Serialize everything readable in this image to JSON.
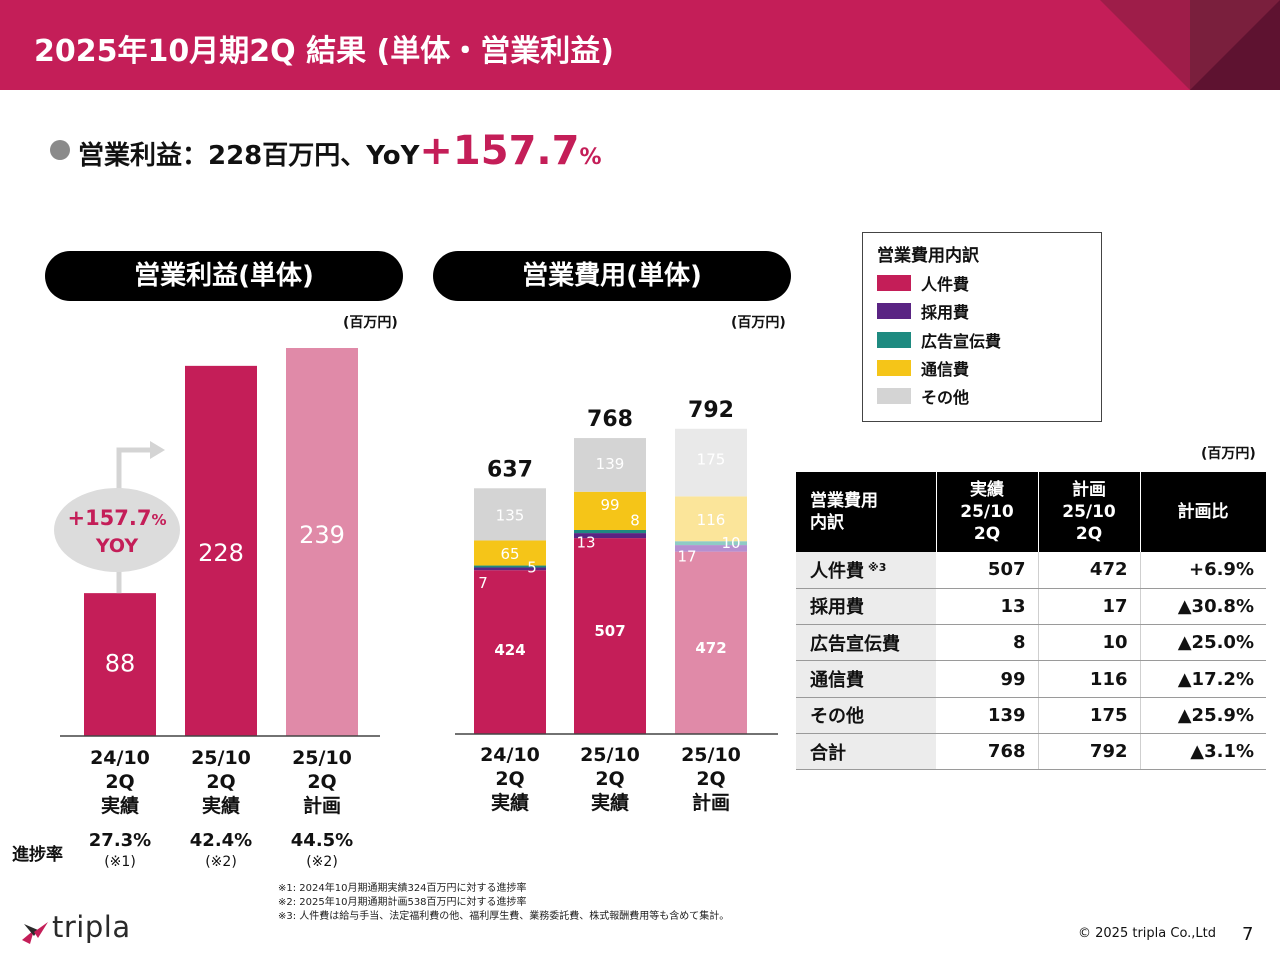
{
  "header": {
    "title": "2025年10月期2Q 結果 (単体・営業利益)"
  },
  "headline": {
    "prefix": "営業利益：228百万円、YoY",
    "big": "+157.7",
    "pct": "%"
  },
  "theme": {
    "accent": "#c41e58",
    "plan_pink": "#e08aa8",
    "header_dark": "#7a1f3d"
  },
  "chart_data": [
    {
      "type": "bar",
      "title": "営業利益(単体)",
      "unit_label": "(百万円)",
      "categories": [
        [
          "24/10",
          "2Q",
          "実績"
        ],
        [
          "25/10",
          "2Q",
          "実績"
        ],
        [
          "25/10",
          "2Q",
          "計画"
        ]
      ],
      "values": [
        88,
        228,
        239
      ],
      "colors": [
        "#c41e58",
        "#c41e58",
        "#e08aa8"
      ],
      "ylim": [
        0,
        239
      ],
      "yoy_badge": {
        "line1": "+157.7",
        "line1_pct": "%",
        "line2": "YOY"
      }
    },
    {
      "type": "bar",
      "stacked": true,
      "title": "営業費用(単体)",
      "unit_label": "(百万円)",
      "categories": [
        [
          "24/10",
          "2Q",
          "実績"
        ],
        [
          "25/10",
          "2Q",
          "実績"
        ],
        [
          "25/10",
          "2Q",
          "計画"
        ]
      ],
      "series": [
        {
          "name": "人件費",
          "values": [
            424,
            507,
            472
          ],
          "colors": [
            "#c41e58",
            "#c41e58",
            "#e08aa8"
          ]
        },
        {
          "name": "採用費",
          "values": [
            7,
            13,
            17
          ],
          "colors": [
            "#5a2483",
            "#5a2483",
            "#b58fd0"
          ]
        },
        {
          "name": "広告宣伝費",
          "values": [
            5,
            8,
            10
          ],
          "colors": [
            "#1e8a80",
            "#1e8a80",
            "#8fcbc5"
          ]
        },
        {
          "name": "通信費",
          "values": [
            65,
            99,
            116
          ],
          "colors": [
            "#f5c518",
            "#f5c518",
            "#fbe59a"
          ]
        },
        {
          "name": "その他",
          "values": [
            135,
            139,
            175
          ],
          "colors": [
            "#d4d4d4",
            "#d4d4d4",
            "#e9e9e9"
          ]
        }
      ],
      "totals": [
        637,
        768,
        792
      ],
      "ylim": [
        0,
        792
      ]
    }
  ],
  "legend": {
    "title": "営業費用内訳",
    "items": [
      {
        "label": "人件費",
        "color": "#c41e58"
      },
      {
        "label": "採用費",
        "color": "#5a2483"
      },
      {
        "label": "広告宣伝費",
        "color": "#1e8a80"
      },
      {
        "label": "通信費",
        "color": "#f5c518"
      },
      {
        "label": "その他",
        "color": "#d4d4d4"
      }
    ]
  },
  "table": {
    "unit_label": "(百万円)",
    "headers": [
      {
        "line1": "営業費用",
        "line2": "内訳",
        "line3": ""
      },
      {
        "line1": "実績",
        "line2": "25/10",
        "line3": "2Q"
      },
      {
        "line1": "計画",
        "line2": "25/10",
        "line3": "2Q"
      },
      {
        "line1": "計画比",
        "line2": "",
        "line3": ""
      }
    ],
    "rows": [
      {
        "label": "人件費",
        "note": "※3",
        "actual": "507",
        "plan": "472",
        "ratio": "+6.9%"
      },
      {
        "label": "採用費",
        "note": "",
        "actual": "13",
        "plan": "17",
        "ratio": "▲30.8%"
      },
      {
        "label": "広告宣伝費",
        "note": "",
        "actual": "8",
        "plan": "10",
        "ratio": "▲25.0%"
      },
      {
        "label": "通信費",
        "note": "",
        "actual": "99",
        "plan": "116",
        "ratio": "▲17.2%"
      },
      {
        "label": "その他",
        "note": "",
        "actual": "139",
        "plan": "175",
        "ratio": "▲25.9%"
      },
      {
        "label": "合計",
        "note": "",
        "actual": "768",
        "plan": "792",
        "ratio": "▲3.1%"
      }
    ]
  },
  "progress": {
    "label": "進捗率",
    "items": [
      {
        "rate": "27.3%",
        "note": "(※1)"
      },
      {
        "rate": "42.4%",
        "note": "(※2)"
      },
      {
        "rate": "44.5%",
        "note": "(※2)"
      }
    ]
  },
  "footnotes": [
    "※1: 2024年10月期通期実績324百万円に対する進捗率",
    "※2: 2025年10月期通期計画538百万円に対する進捗率",
    "※3: 人件費は給与手当、法定福利費の他、福利厚生費、業務委託費、株式報酬費用等も含めて集計。"
  ],
  "footer": {
    "logo_text": "tripla",
    "copyright": "© 2025 tripla Co.,Ltd",
    "page": "7"
  }
}
